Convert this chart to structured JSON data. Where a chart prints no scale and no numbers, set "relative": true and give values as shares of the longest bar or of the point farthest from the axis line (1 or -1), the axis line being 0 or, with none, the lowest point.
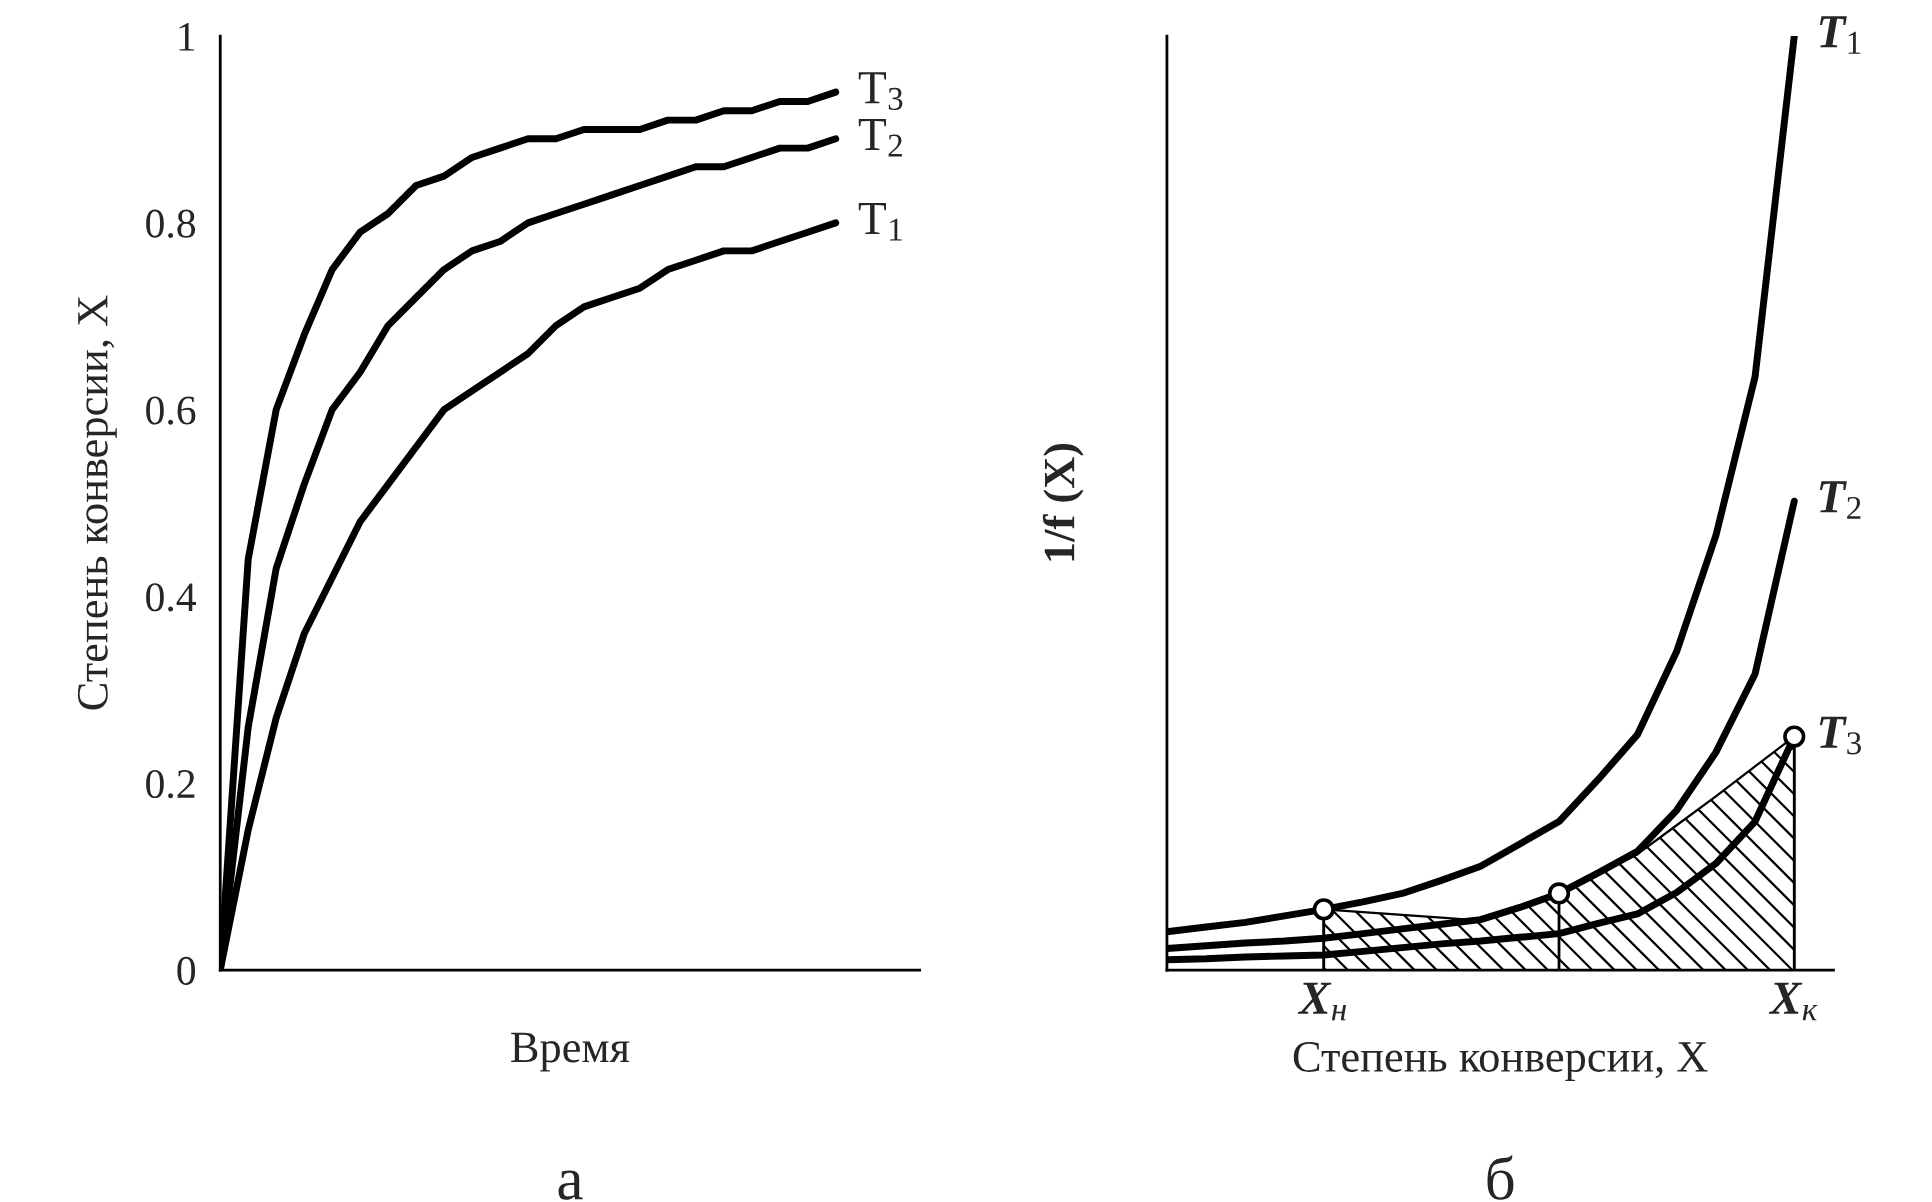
{
  "chart_data": [
    {
      "type": "line",
      "xlabel": "Время",
      "ylabel": "Степень конверсии, X",
      "annotations": [
        "а"
      ],
      "categories": [
        null,
        null,
        null,
        null,
        null,
        null,
        null,
        null,
        null,
        null,
        null,
        null,
        null,
        null,
        null,
        null,
        null,
        null,
        null,
        null,
        null,
        null,
        null,
        null,
        null,
        null
      ],
      "ylim": [
        0,
        1
      ],
      "yticks": [
        0,
        0.2,
        0.4,
        0.6,
        0.8,
        1
      ],
      "tick_labels": "y",
      "grid": false,
      "legend": false,
      "series": [
        {
          "name": "T$_{1}$",
          "color": "#000000",
          "values": [
            0,
            0.15,
            0.27,
            0.36,
            0.42,
            0.48,
            0.52,
            0.56,
            0.6,
            0.62,
            0.64,
            0.66,
            0.69,
            0.71,
            0.72,
            0.73,
            0.75,
            0.76,
            0.77,
            0.77,
            0.78,
            0.79,
            0.8,
            null,
            null,
            null
          ]
        },
        {
          "name": "T$_{2}$",
          "color": "#000000",
          "values": [
            0,
            0.26,
            0.43,
            0.52,
            0.6,
            0.64,
            0.69,
            0.72,
            0.75,
            0.77,
            0.78,
            0.8,
            0.81,
            0.82,
            0.83,
            0.84,
            0.85,
            0.86,
            0.86,
            0.87,
            0.88,
            0.88,
            0.89,
            null,
            null,
            null
          ]
        },
        {
          "name": "T$_{3}$",
          "color": "#000000",
          "values": [
            0,
            0.44,
            0.6,
            0.68,
            0.75,
            0.79,
            0.81,
            0.84,
            0.85,
            0.87,
            0.88,
            0.89,
            0.89,
            0.9,
            0.9,
            0.9,
            0.91,
            0.91,
            0.92,
            0.92,
            0.93,
            0.93,
            0.94,
            null,
            null,
            null
          ]
        }
      ]
    },
    {
      "type": "line",
      "relative": true,
      "xlabel": "Степень конверсии, X",
      "ylabel": "1/f (X)",
      "annotations": [
        "б"
      ],
      "categories": [
        null,
        null,
        null,
        null,
        "X$_{н}$",
        null,
        null,
        null,
        null,
        null,
        null,
        null,
        null,
        null,
        null,
        null,
        "X$_{к}$",
        null
      ],
      "tick_labels": "x",
      "grid": false,
      "legend": false,
      "series": [
        {
          "type": "area",
          "color": "#000000",
          "values": [
            null,
            null,
            null,
            null,
            0.065,
            0.062,
            0.059,
            0.056,
            0.053,
            0.067,
            0.082,
            0.103,
            0.124,
            0.155,
            0.186,
            0.218,
            0.25,
            null
          ]
        },
        {
          "name": "T$_{1}$",
          "color": "#000000",
          "values": [
            0.041,
            0.046,
            0.051,
            0.058,
            0.065,
            0.073,
            0.082,
            0.096,
            0.111,
            0.135,
            0.159,
            0.204,
            0.252,
            0.341,
            0.465,
            0.635,
            1.0,
            null
          ]
        },
        {
          "name": "T$_{2}$",
          "color": "#000000",
          "values": [
            0.023,
            0.026,
            0.029,
            0.031,
            0.034,
            0.039,
            0.044,
            0.049,
            0.054,
            0.067,
            0.082,
            0.104,
            0.127,
            0.171,
            0.233,
            0.317,
            0.502,
            null
          ]
        },
        {
          "name": "T$_{3}$",
          "color": "#000000",
          "values": [
            0.011,
            0.012,
            0.014,
            0.015,
            0.016,
            0.02,
            0.024,
            0.028,
            0.031,
            0.035,
            0.039,
            0.05,
            0.06,
            0.083,
            0.114,
            0.159,
            0.25,
            null
          ]
        },
        {
          "type": "lollipop",
          "marker": "circle",
          "color": "#000000",
          "values": [
            null,
            null,
            null,
            null,
            0.065,
            null,
            null,
            null,
            null,
            null,
            0.082,
            null,
            null,
            null,
            null,
            null,
            0.25,
            null
          ]
        }
      ]
    }
  ]
}
